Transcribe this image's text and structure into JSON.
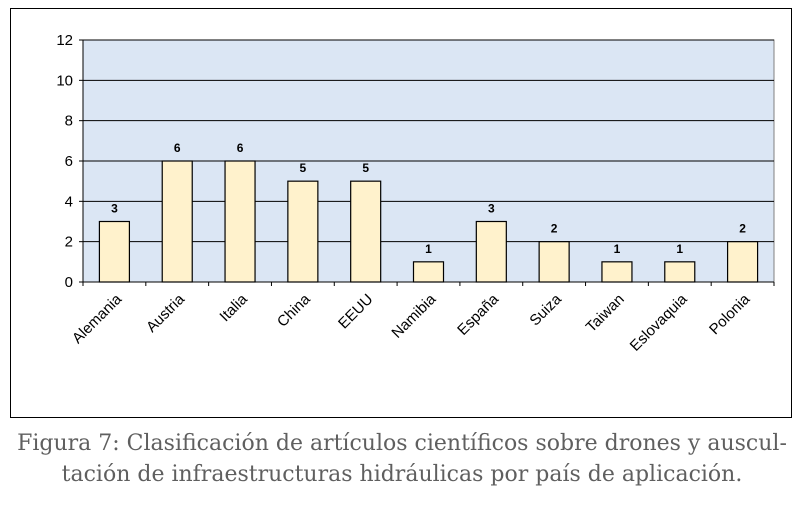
{
  "chart_data": {
    "type": "bar",
    "categories": [
      "Alemania",
      "Austria",
      "Italia",
      "China",
      "EEUU",
      "Namibia",
      "España",
      "Suiza",
      "Taiwan",
      "Eslovaquia",
      "Polonia"
    ],
    "values": [
      3,
      6,
      6,
      5,
      5,
      1,
      3,
      2,
      1,
      1,
      2
    ],
    "ylim": [
      0,
      12
    ],
    "yticks": [
      0,
      2,
      4,
      6,
      8,
      10,
      12
    ],
    "grid": true,
    "colors": {
      "plot_background": "#dbe6f4",
      "bar_fill": "#fff2cc",
      "bar_stroke": "#000000"
    }
  },
  "caption": {
    "line1": "Figura 7: Clasificación de artículos científicos sobre drones y auscul-",
    "line2": "tación de infraestructuras hidráulicas por país de aplicación."
  }
}
